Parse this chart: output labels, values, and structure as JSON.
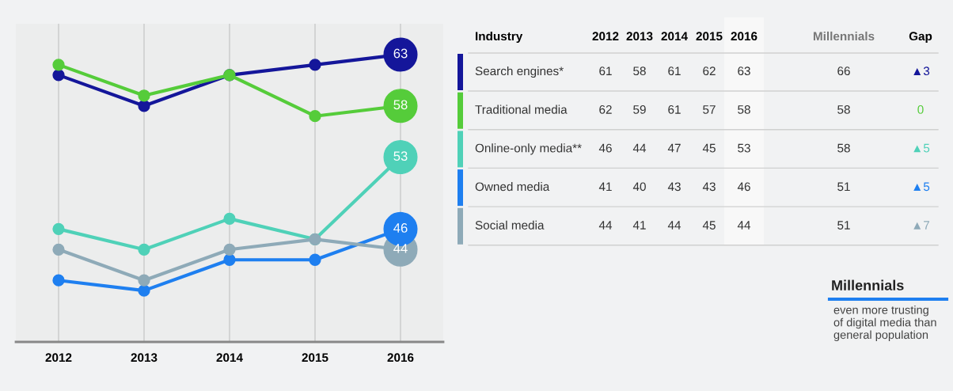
{
  "chart_data": {
    "type": "line",
    "categories": [
      "2012",
      "2013",
      "2014",
      "2015",
      "2016"
    ],
    "series": [
      {
        "name": "Search engines*",
        "color": "#14169a",
        "values": [
          61,
          58,
          61,
          62,
          63
        ],
        "value_labels": [
          null,
          null,
          null,
          null,
          "63"
        ]
      },
      {
        "name": "Traditional media",
        "color": "#55cc3a",
        "values": [
          62,
          59,
          61,
          57,
          58
        ],
        "value_labels": [
          null,
          null,
          null,
          null,
          "58"
        ]
      },
      {
        "name": "Online-only media**",
        "color": "#4fd1b8",
        "values": [
          46,
          44,
          47,
          45,
          53
        ],
        "value_labels": [
          null,
          null,
          null,
          null,
          "53"
        ]
      },
      {
        "name": "Owned media",
        "color": "#1e7ff0",
        "values": [
          41,
          40,
          43,
          43,
          46
        ],
        "value_labels": [
          null,
          null,
          null,
          null,
          "46"
        ]
      },
      {
        "name": "Social media",
        "color": "#8eaab8",
        "values": [
          44,
          41,
          44,
          45,
          44
        ],
        "value_labels": [
          null,
          null,
          null,
          null,
          "44"
        ]
      }
    ],
    "ylim": [
      35,
      66
    ],
    "tick_labels": "x",
    "grid": "x",
    "marker": "circle",
    "line_style": "solid",
    "legend": "right",
    "annotations": [
      "Industry",
      "Millennials",
      "Gap",
      "66",
      "58",
      "58",
      "51",
      "51",
      "▲3",
      "0",
      "▲5",
      "▲5",
      "▲7",
      "Millennials",
      "even more trusting\nof digital media than\ngeneral population",
      "2012",
      "2013",
      "2014",
      "2015",
      "2016",
      "61",
      "58",
      "61",
      "62",
      "63",
      "62",
      "59",
      "61",
      "57",
      "58",
      "46",
      "44",
      "47",
      "45",
      "53",
      "41",
      "40",
      "43",
      "43",
      "46",
      "44",
      "41",
      "44",
      "45",
      "44"
    ]
  }
}
